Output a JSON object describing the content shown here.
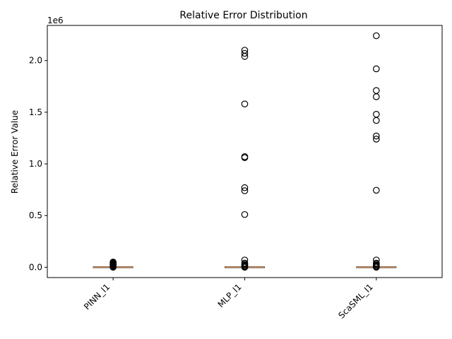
{
  "chart_data": {
    "type": "box",
    "title": "Relative Error Distribution",
    "xlabel": "",
    "ylabel": "Relative Error Value",
    "scale_label": "1e6",
    "ylim": [
      -100000,
      2340000
    ],
    "yticks": [
      0,
      500000,
      1000000,
      1500000,
      2000000
    ],
    "ytick_labels": [
      "0.0",
      "0.5",
      "1.0",
      "1.5",
      "2.0"
    ],
    "grid": false,
    "colors": {
      "median": "#c8824a",
      "box": "#000000",
      "outlier": "#000000"
    },
    "categories": [
      "PINN_l1",
      "MLP_l1",
      "ScaSML_l1"
    ],
    "boxes": [
      {
        "name": "PINN_l1",
        "median": 0,
        "outliers": [
          0,
          5000,
          10000,
          15000,
          20000,
          25000,
          30000,
          35000,
          40000,
          45000,
          50000
        ]
      },
      {
        "name": "MLP_l1",
        "median": 0,
        "outliers": [
          0,
          5000,
          10000,
          20000,
          30000,
          40000,
          70000,
          510000,
          740000,
          770000,
          1060000,
          1070000,
          1580000,
          2040000,
          2070000,
          2100000
        ]
      },
      {
        "name": "ScaSML_l1",
        "median": 0,
        "outliers": [
          0,
          5000,
          10000,
          20000,
          30000,
          40000,
          70000,
          745000,
          1240000,
          1270000,
          1420000,
          1480000,
          1650000,
          1710000,
          1920000,
          2240000
        ]
      }
    ]
  }
}
